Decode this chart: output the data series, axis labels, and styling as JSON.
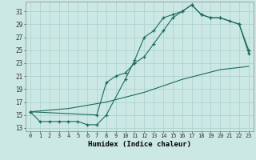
{
  "title": "",
  "xlabel": "Humidex (Indice chaleur)",
  "xlim": [
    -0.5,
    23.5
  ],
  "ylim": [
    12.5,
    32.5
  ],
  "yticks": [
    13,
    15,
    17,
    19,
    21,
    23,
    25,
    27,
    29,
    31
  ],
  "xticks": [
    0,
    1,
    2,
    3,
    4,
    5,
    6,
    7,
    8,
    9,
    10,
    11,
    12,
    13,
    14,
    15,
    16,
    17,
    18,
    19,
    20,
    21,
    22,
    23
  ],
  "xtick_labels": [
    "0",
    "1",
    "2",
    "3",
    "4",
    "5",
    "6",
    "7",
    "8",
    "9",
    "10",
    "11",
    "12",
    "13",
    "14",
    "15",
    "16",
    "17",
    "18",
    "19",
    "20",
    "21",
    "22",
    "23"
  ],
  "line_color": "#1a6b5a",
  "bg_color": "#cce8e4",
  "grid_color": "#aad0cc",
  "line1_x": [
    0,
    1,
    2,
    3,
    4,
    5,
    6,
    7,
    8,
    10,
    11,
    12,
    13,
    14,
    15,
    16,
    17,
    18,
    19,
    20,
    22,
    23
  ],
  "line1_y": [
    15.5,
    14,
    14,
    14,
    14,
    14,
    13.5,
    13.5,
    15,
    20.5,
    23.5,
    27,
    28,
    30,
    30.5,
    31,
    32,
    30.5,
    30,
    30,
    29,
    24.5
  ],
  "line2_x": [
    0,
    7,
    8,
    9,
    10,
    11,
    12,
    13,
    14,
    15,
    16,
    17,
    18,
    19,
    20,
    21,
    22,
    23
  ],
  "line2_y": [
    15.5,
    15,
    20,
    21,
    21.5,
    23,
    24,
    26,
    28,
    30,
    31,
    32,
    30.5,
    30,
    30,
    29.5,
    29,
    25
  ],
  "line3_x": [
    0,
    4,
    8,
    12,
    16,
    20,
    23
  ],
  "line3_y": [
    15.5,
    16,
    17,
    18.5,
    20.5,
    22,
    22.5
  ]
}
